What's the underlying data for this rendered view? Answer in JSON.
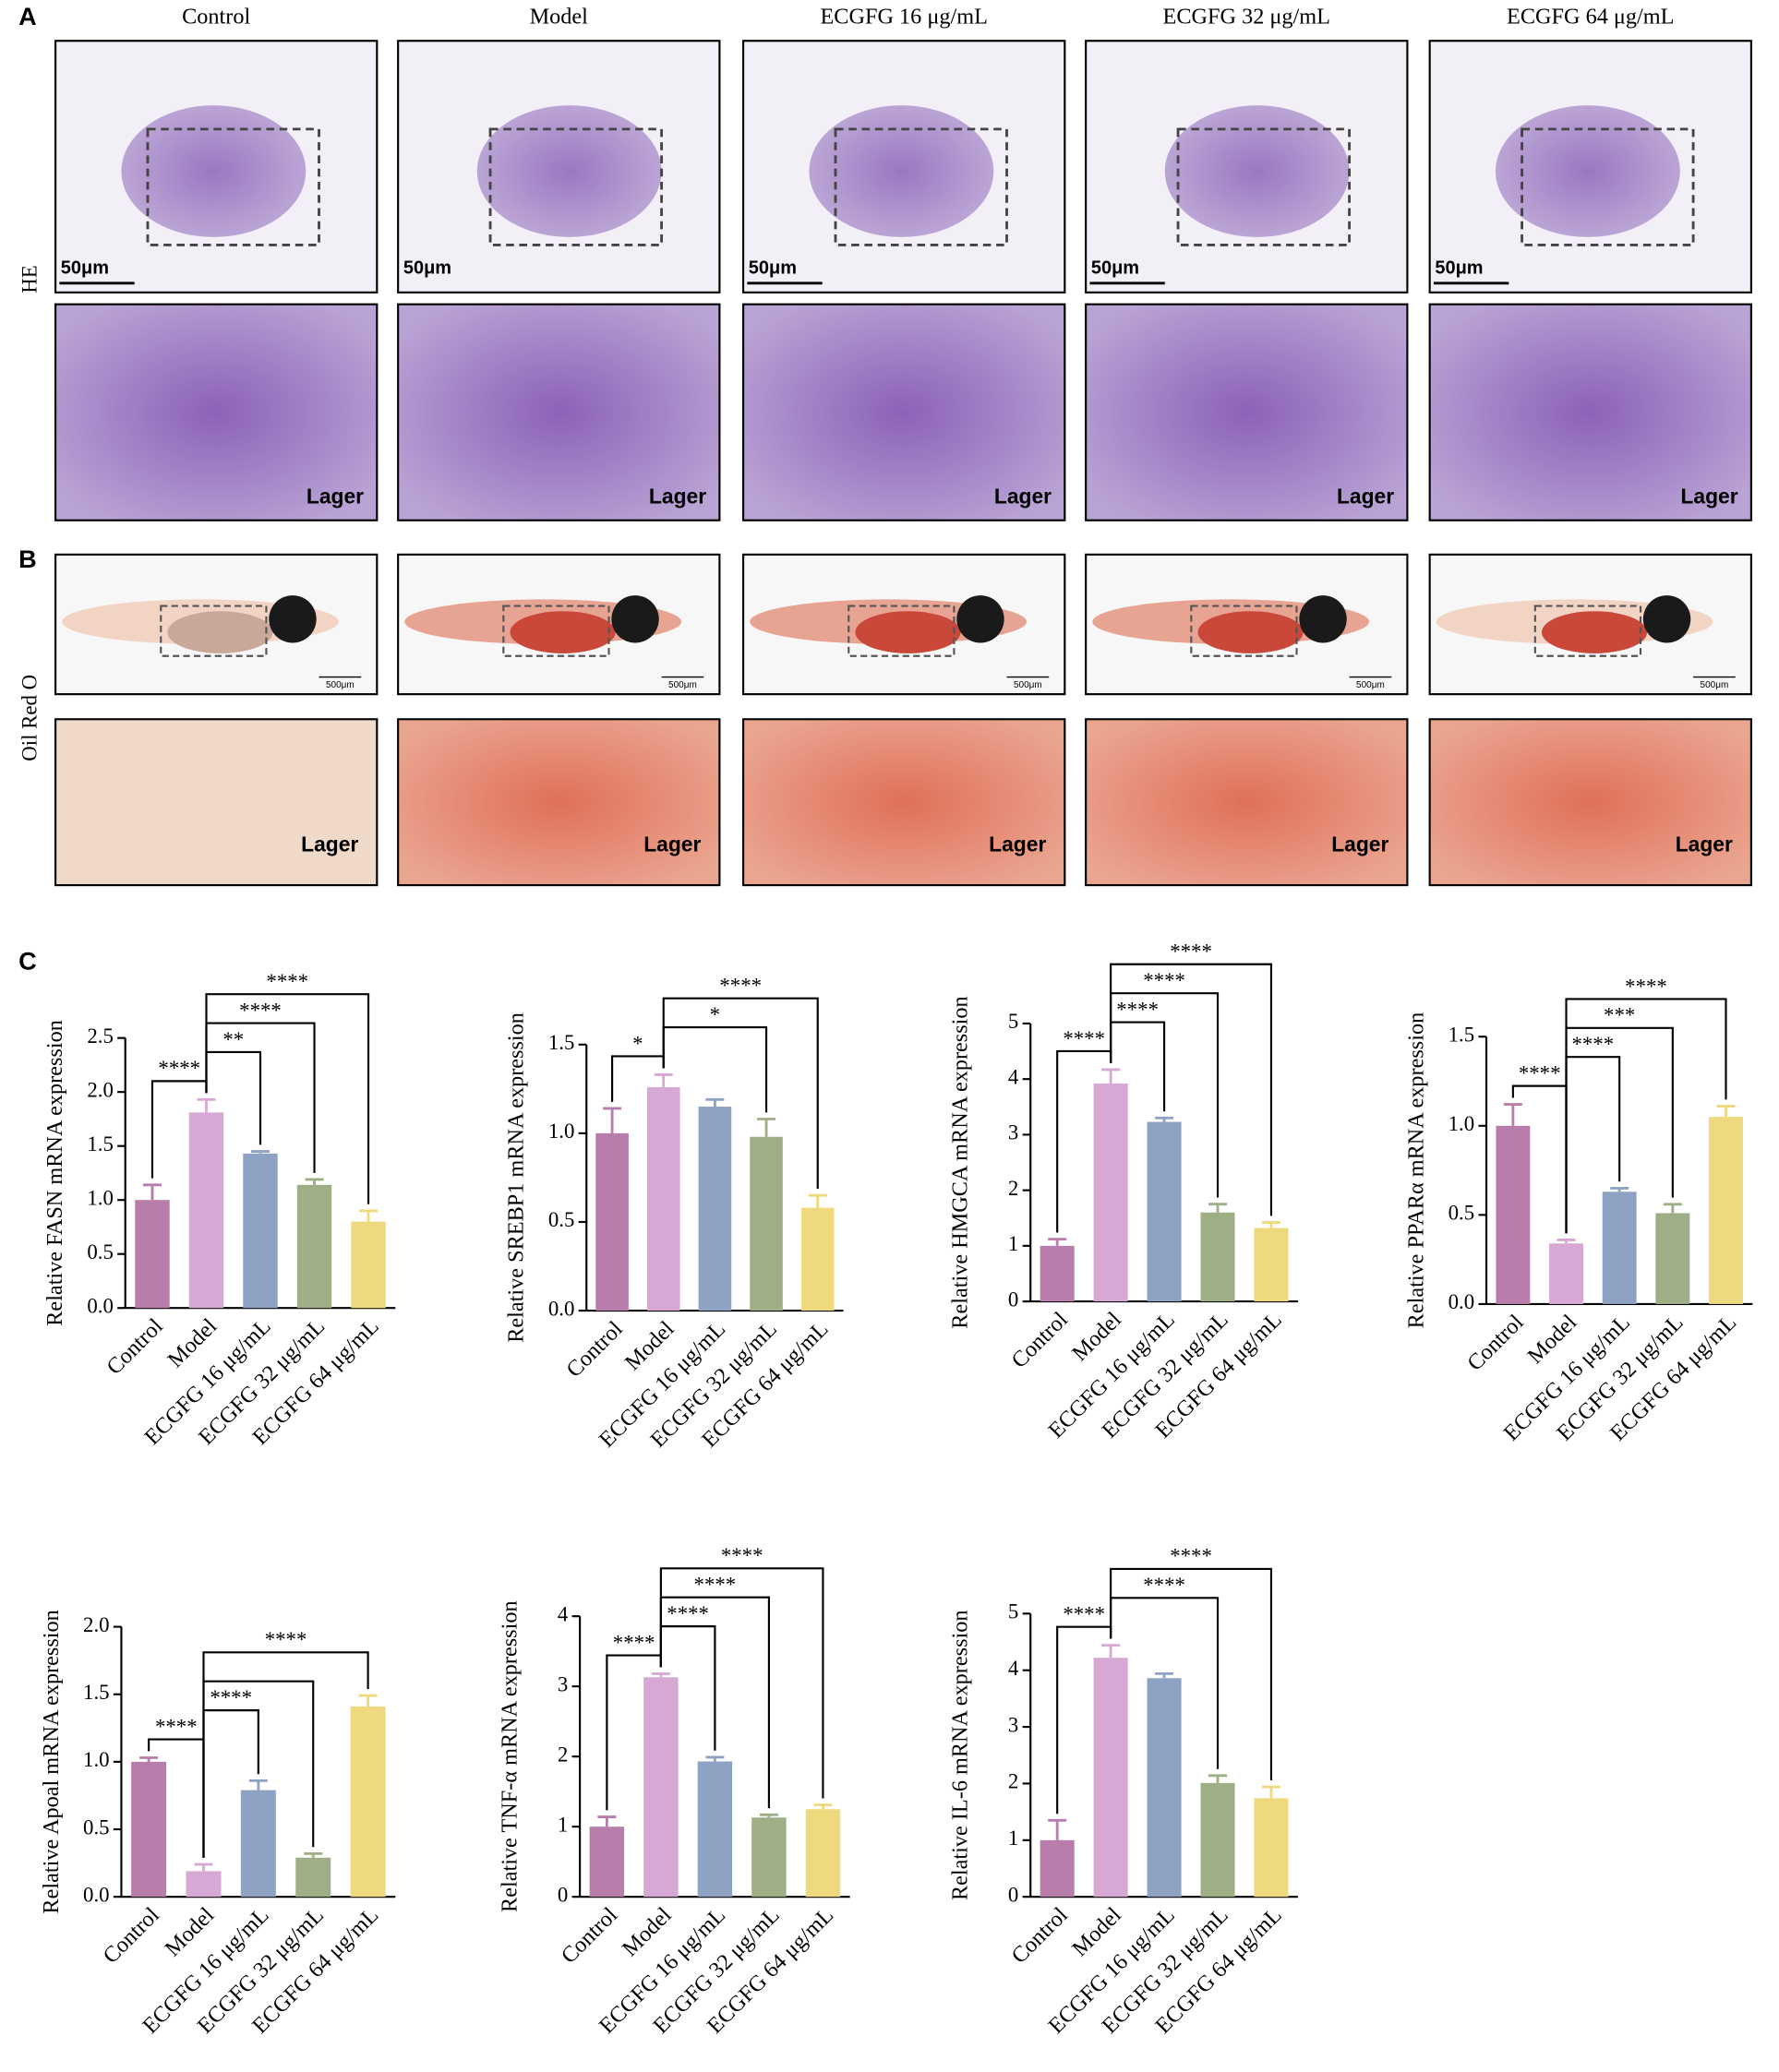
{
  "panels": [
    "A",
    "B",
    "C"
  ],
  "columns": [
    "Control",
    "Model",
    "ECGFG 16 μg/mL",
    "ECGFG 32 μg/mL",
    "ECGFG 64 μg/mL"
  ],
  "rows": [
    "HE",
    "Oil Red O"
  ],
  "he_scale": "50μm",
  "oro_scale": "500μm",
  "zoom_label": "Lager",
  "chart_data": [
    {
      "type": "bar",
      "y_label": "Relative FASN mRNA expression",
      "categories": [
        "Control",
        "Model",
        "ECGFG 16 μg/mL",
        "ECGFG 32 μg/mL",
        "ECGFG 64 μg/mL"
      ],
      "values": [
        1.0,
        1.81,
        1.43,
        1.14,
        0.8
      ],
      "errors": [
        0.14,
        0.12,
        0.02,
        0.05,
        0.1
      ],
      "colors": [
        "#b87dab",
        "#d7a8d3",
        "#8ea3c3",
        "#9eaf85",
        "#eed97f"
      ],
      "ylim": [
        0,
        2.5
      ],
      "yticks": [
        {
          "value": 0,
          "label": "0.0"
        },
        {
          "value": 0.5,
          "label": "0.5"
        },
        {
          "value": 1,
          "label": "1.0"
        },
        {
          "value": 1.5,
          "label": "1.5"
        },
        {
          "value": 2,
          "label": "2.0"
        },
        {
          "value": 2.5,
          "label": "2.5"
        }
      ],
      "annotations": [
        {
          "between": [
            "Control",
            "Model"
          ],
          "label": "****"
        },
        {
          "between": [
            "Model",
            "ECGFG 16 μg/mL"
          ],
          "label": "**"
        },
        {
          "between": [
            "Model",
            "ECGFG 32 μg/mL"
          ],
          "label": "****"
        },
        {
          "between": [
            "Model",
            "ECGFG 64 μg/mL"
          ],
          "label": "****"
        }
      ]
    },
    {
      "type": "bar",
      "y_label": "Relative SREBP1 mRNA expression",
      "categories": [
        "Control",
        "Model",
        "ECGFG 16 μg/mL",
        "ECGFG 32 μg/mL",
        "ECGFG 64 μg/mL"
      ],
      "values": [
        1.0,
        1.26,
        1.15,
        0.98,
        0.58
      ],
      "errors": [
        0.14,
        0.07,
        0.04,
        0.1,
        0.07
      ],
      "colors": [
        "#b87dab",
        "#d7a8d3",
        "#8ea3c3",
        "#9eaf85",
        "#eed97f"
      ],
      "ylim": [
        0,
        1.5
      ],
      "yticks": [
        {
          "value": 0,
          "label": "0.0"
        },
        {
          "value": 0.5,
          "label": "0.5"
        },
        {
          "value": 1,
          "label": "1.0"
        },
        {
          "value": 1.5,
          "label": "1.5"
        }
      ],
      "annotations": [
        {
          "between": [
            "Control",
            "Model"
          ],
          "label": "*"
        },
        {
          "between": [
            "Model",
            "ECGFG 32 μg/mL"
          ],
          "label": "*"
        },
        {
          "between": [
            "Model",
            "ECGFG 64 μg/mL"
          ],
          "label": "****"
        }
      ]
    },
    {
      "type": "bar",
      "y_label": "Relative HMGCA mRNA expression",
      "categories": [
        "Control",
        "Model",
        "ECGFG 16 μg/mL",
        "ECGFG 32 μg/mL",
        "ECGFG 64 μg/mL"
      ],
      "values": [
        1.0,
        3.92,
        3.23,
        1.6,
        1.32
      ],
      "errors": [
        0.12,
        0.25,
        0.07,
        0.15,
        0.1
      ],
      "colors": [
        "#b87dab",
        "#d7a8d3",
        "#8ea3c3",
        "#9eaf85",
        "#eed97f"
      ],
      "ylim": [
        0,
        5
      ],
      "yticks": [
        0,
        1,
        2,
        3,
        4,
        5
      ],
      "annotations": [
        {
          "between": [
            "Control",
            "Model"
          ],
          "label": "****"
        },
        {
          "between": [
            "Model",
            "ECGFG 16 μg/mL"
          ],
          "label": "****"
        },
        {
          "between": [
            "Model",
            "ECGFG 32 μg/mL"
          ],
          "label": "****"
        },
        {
          "between": [
            "Model",
            "ECGFG 64 μg/mL"
          ],
          "label": "****"
        }
      ]
    },
    {
      "type": "bar",
      "y_label": "Relative PPARα mRNA expression",
      "categories": [
        "Control",
        "Model",
        "ECGFG 16 μg/mL",
        "ECGFG 32 μg/mL",
        "ECGFG 64 μg/mL"
      ],
      "values": [
        1.0,
        0.34,
        0.63,
        0.51,
        1.05
      ],
      "errors": [
        0.12,
        0.02,
        0.02,
        0.05,
        0.06
      ],
      "colors": [
        "#b87dab",
        "#d7a8d3",
        "#8ea3c3",
        "#9eaf85",
        "#eed97f"
      ],
      "ylim": [
        0,
        1.5
      ],
      "yticks": [
        {
          "value": 0,
          "label": "0.0"
        },
        {
          "value": 0.5,
          "label": "0.5"
        },
        {
          "value": 1,
          "label": "1.0"
        },
        {
          "value": 1.5,
          "label": "1.5"
        }
      ],
      "annotations": [
        {
          "between": [
            "Control",
            "Model"
          ],
          "label": "****"
        },
        {
          "between": [
            "Model",
            "ECGFG 16 μg/mL"
          ],
          "label": "****"
        },
        {
          "between": [
            "Model",
            "ECGFG 32 μg/mL"
          ],
          "label": "***"
        },
        {
          "between": [
            "Model",
            "ECGFG 64 μg/mL"
          ],
          "label": "****"
        }
      ]
    },
    {
      "type": "bar",
      "y_label": "Relative Apoal mRNA expression",
      "categories": [
        "Control",
        "Model",
        "ECGFG 16 μg/mL",
        "ECGFG 32 μg/mL",
        "ECGFG 64 μg/mL"
      ],
      "values": [
        1.0,
        0.19,
        0.79,
        0.29,
        1.41
      ],
      "errors": [
        0.03,
        0.05,
        0.07,
        0.03,
        0.08
      ],
      "colors": [
        "#b87dab",
        "#d7a8d3",
        "#8ea3c3",
        "#9eaf85",
        "#eed97f"
      ],
      "ylim": [
        0,
        2.0
      ],
      "yticks": [
        {
          "value": 0,
          "label": "0.0"
        },
        {
          "value": 0.5,
          "label": "0.5"
        },
        {
          "value": 1,
          "label": "1.0"
        },
        {
          "value": 1.5,
          "label": "1.5"
        },
        {
          "value": 2,
          "label": "2.0"
        }
      ],
      "annotations": [
        {
          "between": [
            "Control",
            "Model"
          ],
          "label": "****"
        },
        {
          "between": [
            "Model",
            "ECGFG 16 μg/mL"
          ],
          "label": "****"
        },
        {
          "between": [
            "Model",
            "ECGFG 32 μg/mL"
          ]
        },
        {
          "between": [
            "Model",
            "ECGFG 64 μg/mL"
          ],
          "label": "****"
        }
      ]
    },
    {
      "type": "bar",
      "y_label": "Relative TNF-α mRNA expression",
      "categories": [
        "Control",
        "Model",
        "ECGFG 16 μg/mL",
        "ECGFG 32 μg/mL",
        "ECGFG 64 μg/mL"
      ],
      "values": [
        1.0,
        3.13,
        1.93,
        1.13,
        1.25
      ],
      "errors": [
        0.14,
        0.05,
        0.06,
        0.04,
        0.06
      ],
      "colors": [
        "#b87dab",
        "#d7a8d3",
        "#8ea3c3",
        "#9eaf85",
        "#eed97f"
      ],
      "ylim": [
        0,
        4
      ],
      "yticks": [
        0,
        1,
        2,
        3,
        4
      ],
      "annotations": [
        {
          "between": [
            "Control",
            "Model"
          ],
          "label": "****"
        },
        {
          "between": [
            "Model",
            "ECGFG 16 μg/mL"
          ],
          "label": "****"
        },
        {
          "between": [
            "Model",
            "ECGFG 32 μg/mL"
          ],
          "label": "****"
        },
        {
          "between": [
            "Model",
            "ECGFG 64 μg/mL"
          ],
          "label": "****"
        }
      ]
    },
    {
      "type": "bar",
      "y_label": "Relative IL-6 mRNA expression",
      "categories": [
        "Control",
        "Model",
        "ECGFG 16 μg/mL",
        "ECGFG 32 μg/mL",
        "ECGFG 64 μg/mL"
      ],
      "values": [
        1.0,
        4.22,
        3.86,
        2.01,
        1.74
      ],
      "errors": [
        0.35,
        0.22,
        0.08,
        0.13,
        0.2
      ],
      "colors": [
        "#b87dab",
        "#d7a8d3",
        "#8ea3c3",
        "#9eaf85",
        "#eed97f"
      ],
      "ylim": [
        0,
        5
      ],
      "yticks": [
        0,
        1,
        2,
        3,
        4,
        5
      ],
      "annotations": [
        {
          "between": [
            "Control",
            "Model"
          ],
          "label": "****"
        },
        {
          "between": [
            "Model",
            "ECGFG 32 μg/mL"
          ],
          "label": "****"
        },
        {
          "between": [
            "Model",
            "ECGFG 64 μg/mL"
          ],
          "label": "****"
        }
      ]
    }
  ]
}
